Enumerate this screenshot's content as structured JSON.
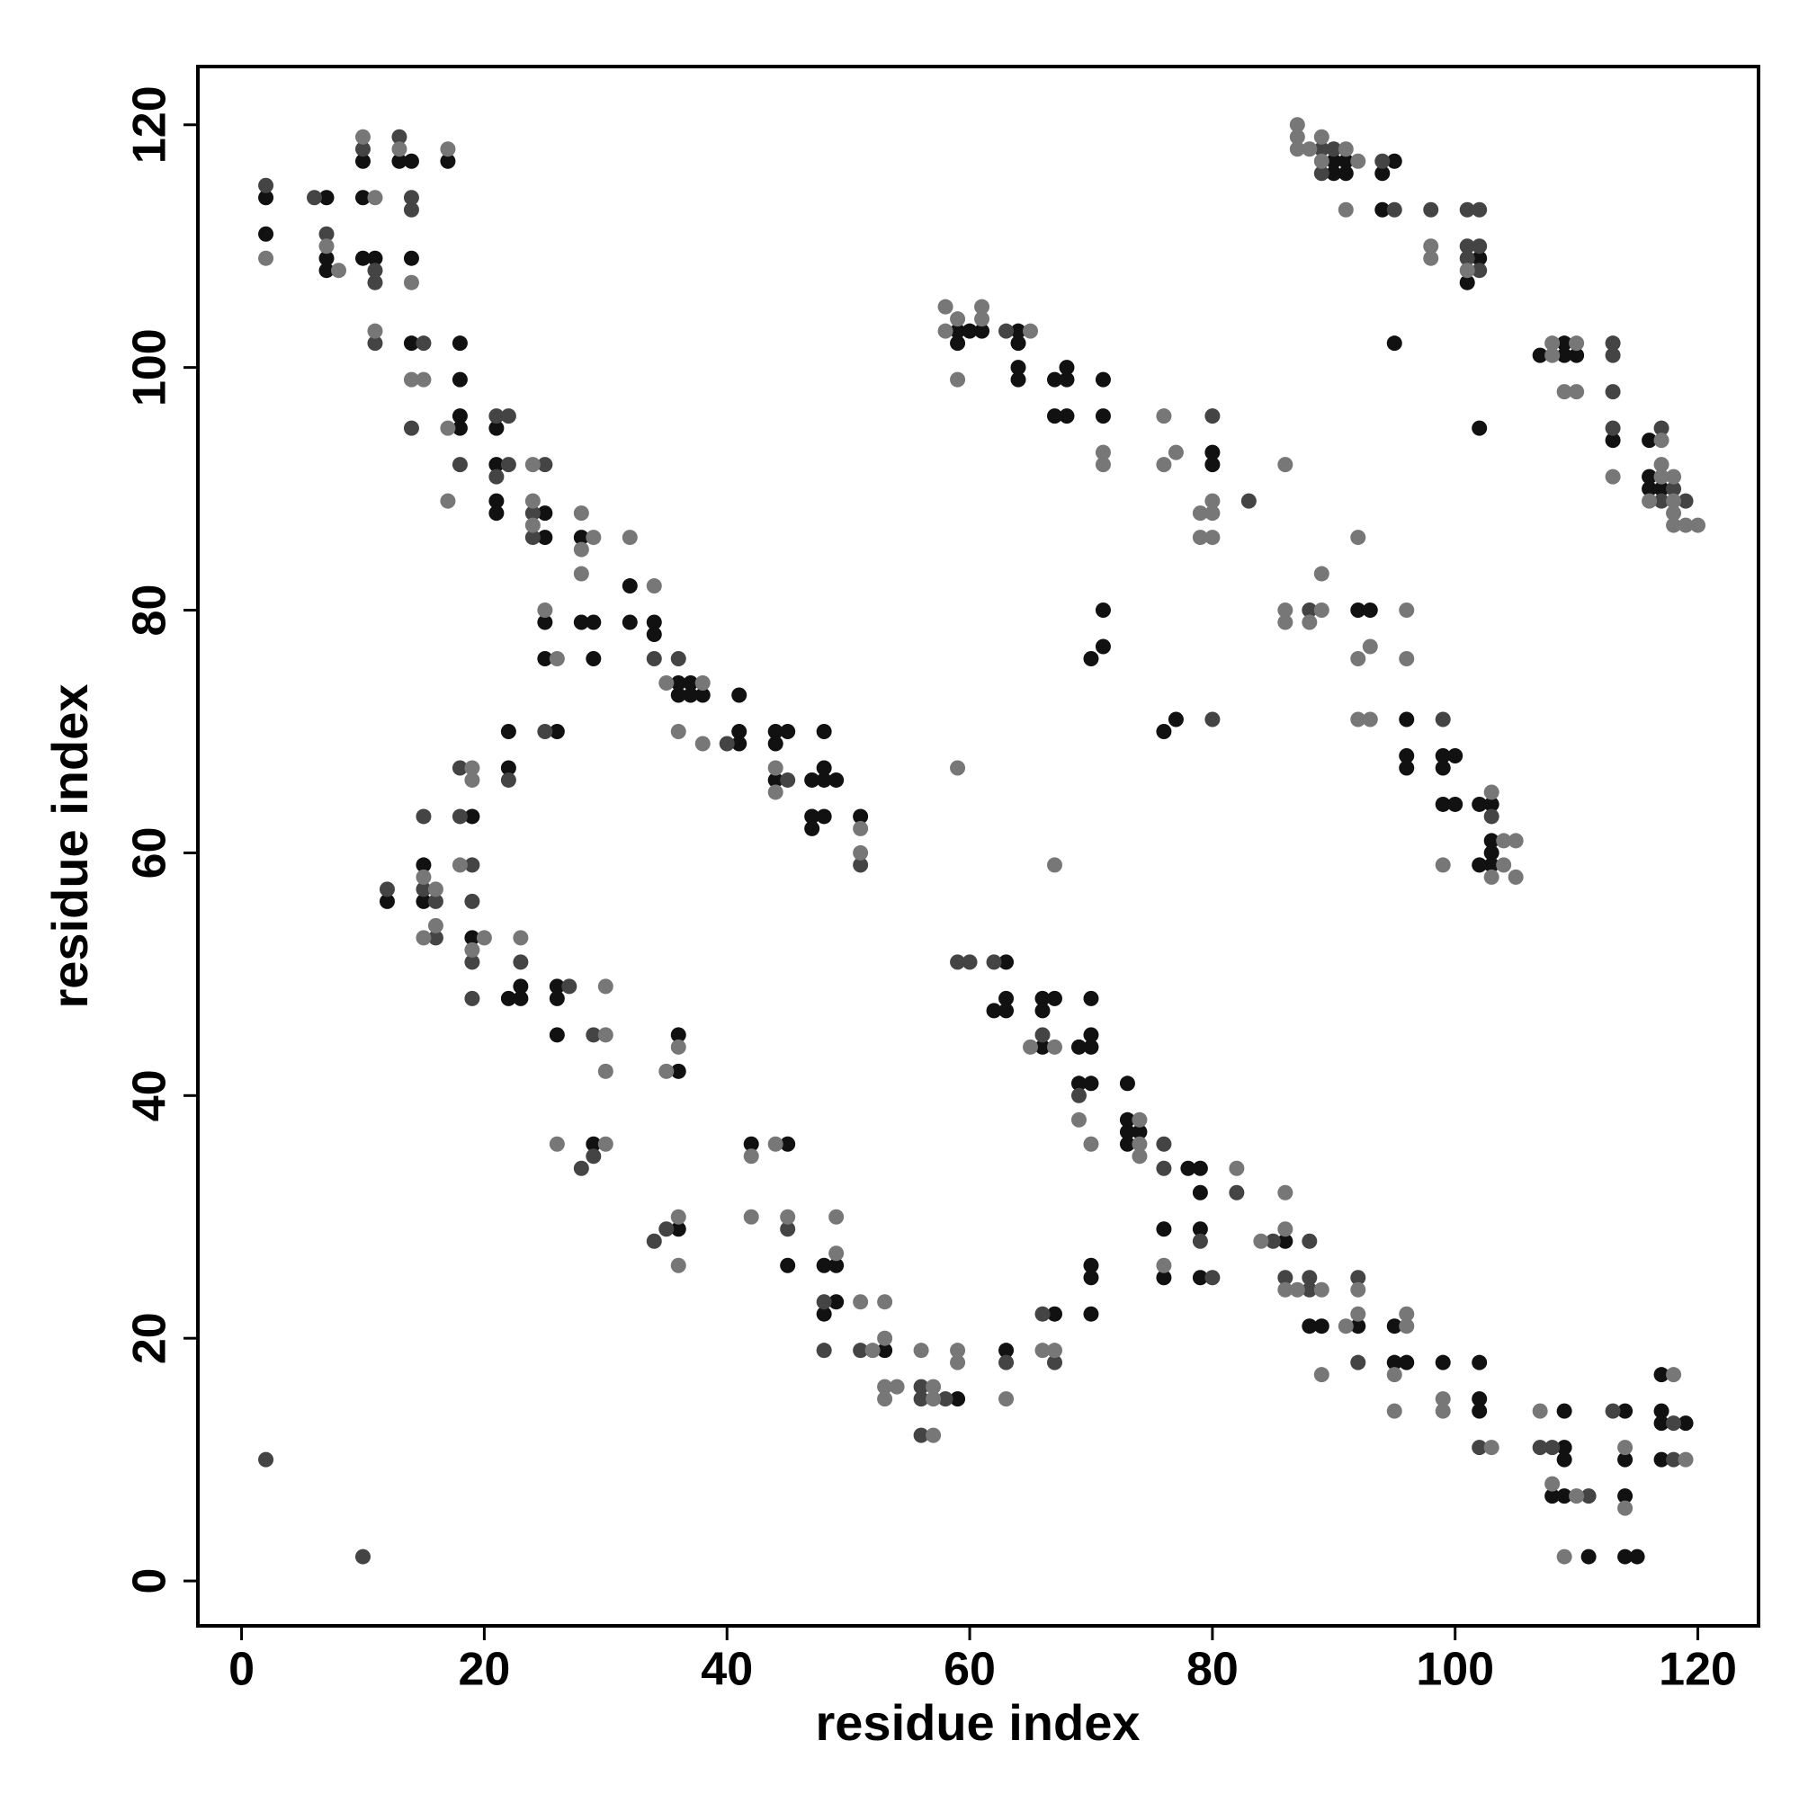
{
  "chart_data": {
    "type": "scatter",
    "x_label": "residue index",
    "y_label": "residue index",
    "xlim": [
      -3.6,
      125
    ],
    "ylim": [
      -3.7,
      124.8
    ],
    "xticks": [
      0,
      20,
      40,
      60,
      80,
      100,
      120
    ],
    "yticks": [
      0,
      20,
      40,
      60,
      80,
      100,
      120
    ],
    "grid": false,
    "series": [
      {
        "color": "#111111",
        "x": [
          2,
          2,
          7,
          7,
          7,
          10,
          10,
          10,
          11,
          13,
          14,
          14,
          17,
          14,
          18,
          18,
          18,
          18,
          21,
          21,
          21,
          21,
          25,
          25,
          28,
          25,
          28,
          29,
          32,
          32,
          34,
          34,
          25,
          29,
          36,
          37,
          36,
          37,
          38,
          26,
          41,
          41,
          41,
          44,
          45,
          48,
          44,
          44,
          47,
          48,
          48,
          49,
          47,
          48,
          47,
          51,
          22,
          22,
          19,
          15,
          12,
          15,
          19,
          22,
          23,
          23,
          26,
          26,
          26,
          36,
          36,
          29,
          42,
          45,
          36,
          45,
          48,
          49,
          49,
          48,
          53,
          59,
          63,
          59,
          59,
          60,
          61,
          64,
          64,
          64,
          64,
          67,
          68,
          68,
          67,
          68,
          71,
          71,
          80,
          80,
          71,
          71,
          70,
          76,
          77,
          90,
          90,
          91,
          91,
          95,
          94,
          94,
          101,
          102,
          95,
          102,
          107,
          109,
          109,
          110,
          113,
          116,
          116,
          116,
          117,
          92,
          93,
          96,
          96,
          96,
          99,
          100,
          99,
          99,
          100,
          102,
          103,
          103,
          103,
          102,
          103,
          63,
          62,
          63,
          63,
          66,
          67,
          66,
          66,
          69,
          70,
          70,
          70,
          69,
          70,
          73,
          73,
          73,
          74,
          73,
          78,
          79,
          79,
          76,
          79,
          86,
          88,
          89,
          92,
          95,
          95,
          96,
          99,
          102,
          102,
          102,
          109,
          109,
          109,
          108,
          109,
          111,
          114,
          114,
          114,
          114,
          115,
          117,
          117,
          117,
          119,
          117,
          67,
          70,
          70,
          70,
          76,
          79
        ],
        "y": [
          114,
          111,
          114,
          109,
          108,
          117,
          114,
          109,
          109,
          117,
          117,
          109,
          117,
          102,
          102,
          99,
          96,
          95,
          95,
          92,
          89,
          88,
          88,
          86,
          86,
          79,
          79,
          79,
          82,
          79,
          79,
          78,
          76,
          76,
          74,
          74,
          73,
          73,
          73,
          70,
          69,
          70,
          73,
          70,
          70,
          70,
          69,
          66,
          66,
          66,
          67,
          66,
          63,
          63,
          62,
          63,
          70,
          67,
          63,
          59,
          56,
          56,
          53,
          48,
          48,
          49,
          49,
          48,
          45,
          45,
          42,
          36,
          36,
          36,
          29,
          26,
          26,
          26,
          23,
          22,
          19,
          15,
          19,
          103,
          102,
          103,
          103,
          103,
          102,
          100,
          99,
          99,
          99,
          100,
          96,
          96,
          99,
          96,
          93,
          92,
          80,
          77,
          76,
          70,
          71,
          117,
          116,
          117,
          116,
          117,
          116,
          113,
          107,
          109,
          102,
          95,
          101,
          102,
          101,
          101,
          94,
          94,
          91,
          90,
          90,
          80,
          80,
          71,
          68,
          67,
          68,
          68,
          67,
          64,
          64,
          64,
          64,
          61,
          60,
          59,
          59,
          51,
          47,
          47,
          48,
          48,
          48,
          47,
          44,
          44,
          44,
          45,
          48,
          41,
          41,
          41,
          38,
          37,
          37,
          36,
          34,
          34,
          32,
          29,
          29,
          28,
          21,
          21,
          21,
          21,
          18,
          18,
          18,
          18,
          15,
          14,
          14,
          11,
          10,
          7,
          7,
          2,
          14,
          10,
          7,
          2,
          2,
          17,
          14,
          13,
          13,
          10,
          22,
          26,
          25,
          22,
          25,
          25
        ]
      },
      {
        "color": "#444444",
        "x": [
          2,
          6,
          7,
          10,
          11,
          11,
          11,
          13,
          14,
          14,
          15,
          14,
          18,
          21,
          22,
          22,
          21,
          25,
          24,
          24,
          34,
          36,
          25,
          40,
          45,
          51,
          22,
          18,
          18,
          15,
          19,
          12,
          15,
          16,
          19,
          16,
          19,
          23,
          19,
          27,
          29,
          28,
          29,
          34,
          35,
          45,
          48,
          48,
          51,
          56,
          56,
          58,
          56,
          63,
          63,
          80,
          83,
          80,
          89,
          89,
          90,
          94,
          95,
          98,
          101,
          102,
          101,
          101,
          102,
          102,
          113,
          113,
          113,
          113,
          117,
          117,
          118,
          119,
          88,
          99,
          103,
          59,
          60,
          62,
          66,
          69,
          76,
          76,
          82,
          79,
          85,
          88,
          86,
          88,
          88,
          92,
          92,
          102,
          107,
          108,
          111,
          113,
          118,
          118,
          66,
          67,
          80,
          2,
          10
        ],
        "y": [
          115,
          114,
          111,
          118,
          108,
          107,
          102,
          119,
          114,
          113,
          102,
          95,
          92,
          96,
          96,
          92,
          91,
          92,
          88,
          86,
          76,
          76,
          70,
          69,
          66,
          59,
          66,
          67,
          63,
          63,
          59,
          57,
          57,
          56,
          56,
          53,
          51,
          51,
          48,
          49,
          45,
          34,
          35,
          28,
          29,
          29,
          23,
          19,
          19,
          16,
          15,
          15,
          12,
          18,
          103,
          96,
          89,
          71,
          118,
          116,
          118,
          117,
          113,
          113,
          113,
          113,
          110,
          109,
          110,
          108,
          102,
          101,
          98,
          95,
          95,
          89,
          90,
          89,
          80,
          71,
          63,
          51,
          51,
          51,
          45,
          40,
          36,
          34,
          32,
          28,
          28,
          28,
          25,
          25,
          24,
          25,
          18,
          11,
          11,
          11,
          7,
          14,
          13,
          10,
          22,
          18,
          25,
          10,
          2
        ]
      },
      {
        "color": "#777777",
        "x": [
          2,
          7,
          8,
          10,
          11,
          11,
          13,
          14,
          17,
          14,
          15,
          17,
          17,
          24,
          24,
          24,
          28,
          29,
          28,
          28,
          32,
          25,
          34,
          26,
          35,
          38,
          36,
          38,
          44,
          44,
          51,
          51,
          19,
          19,
          18,
          15,
          16,
          16,
          15,
          20,
          19,
          23,
          30,
          30,
          30,
          35,
          36,
          26,
          30,
          44,
          42,
          36,
          36,
          42,
          45,
          49,
          49,
          51,
          53,
          52,
          53,
          53,
          53,
          54,
          56,
          57,
          57,
          57,
          59,
          59,
          63,
          58,
          58,
          59,
          61,
          61,
          65,
          59,
          71,
          71,
          76,
          77,
          76,
          79,
          80,
          80,
          79,
          80,
          86,
          59,
          67,
          87,
          87,
          87,
          88,
          89,
          89,
          91,
          92,
          91,
          98,
          98,
          101,
          108,
          108,
          110,
          109,
          110,
          113,
          117,
          116,
          117,
          117,
          118,
          118,
          118,
          118,
          119,
          120,
          86,
          86,
          88,
          89,
          89,
          92,
          92,
          93,
          96,
          96,
          92,
          93,
          103,
          104,
          105,
          104,
          103,
          105,
          99,
          65,
          67,
          69,
          70,
          74,
          74,
          74,
          82,
          84,
          86,
          86,
          86,
          87,
          89,
          91,
          92,
          92,
          89,
          96,
          96,
          95,
          95,
          99,
          99,
          103,
          107,
          108,
          110,
          109,
          114,
          114,
          118,
          119,
          66,
          67,
          76
        ],
        "y": [
          109,
          110,
          108,
          119,
          114,
          103,
          118,
          107,
          118,
          99,
          99,
          95,
          89,
          92,
          89,
          87,
          88,
          86,
          85,
          83,
          86,
          80,
          82,
          76,
          74,
          74,
          70,
          69,
          67,
          65,
          62,
          60,
          67,
          66,
          59,
          58,
          57,
          54,
          53,
          53,
          52,
          53,
          49,
          45,
          42,
          42,
          44,
          36,
          36,
          36,
          35,
          30,
          26,
          30,
          30,
          30,
          27,
          23,
          23,
          19,
          20,
          16,
          15,
          16,
          19,
          16,
          15,
          12,
          19,
          18,
          15,
          105,
          103,
          104,
          105,
          104,
          103,
          99,
          93,
          92,
          96,
          93,
          92,
          88,
          89,
          88,
          86,
          86,
          92,
          67,
          59,
          120,
          119,
          118,
          118,
          119,
          117,
          118,
          117,
          113,
          110,
          109,
          108,
          102,
          101,
          102,
          98,
          98,
          91,
          94,
          89,
          92,
          91,
          91,
          89,
          88,
          87,
          87,
          87,
          80,
          79,
          79,
          80,
          83,
          86,
          76,
          77,
          80,
          76,
          71,
          71,
          65,
          61,
          61,
          59,
          58,
          58,
          59,
          44,
          44,
          38,
          36,
          38,
          36,
          35,
          34,
          28,
          32,
          29,
          24,
          24,
          24,
          21,
          22,
          24,
          17,
          21,
          22,
          17,
          14,
          15,
          14,
          11,
          14,
          8,
          7,
          2,
          11,
          6,
          17,
          10,
          19,
          19,
          26
        ]
      }
    ]
  }
}
